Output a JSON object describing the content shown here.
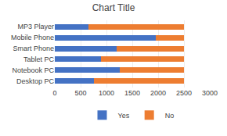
{
  "chart_data": {
    "type": "bar",
    "title": "Chart Title",
    "orientation": "horizontal",
    "stacked": true,
    "categories": [
      "Desktop PC",
      "Notebook PC",
      "Tablet PC",
      "Smart Phone",
      "Mobile Phone",
      "MP3 Player"
    ],
    "series": [
      {
        "name": "Yes",
        "color": "#4472C4",
        "values": [
          750,
          1250,
          900,
          1200,
          1950,
          650
        ]
      },
      {
        "name": "No",
        "color": "#ED7D31",
        "values": [
          1750,
          1250,
          1600,
          1300,
          550,
          1850
        ]
      }
    ],
    "xlim": [
      0,
      3000
    ],
    "xticks": [
      0,
      500,
      1000,
      1500,
      2000,
      2500,
      3000
    ],
    "grid": true,
    "legend": "bottom"
  }
}
